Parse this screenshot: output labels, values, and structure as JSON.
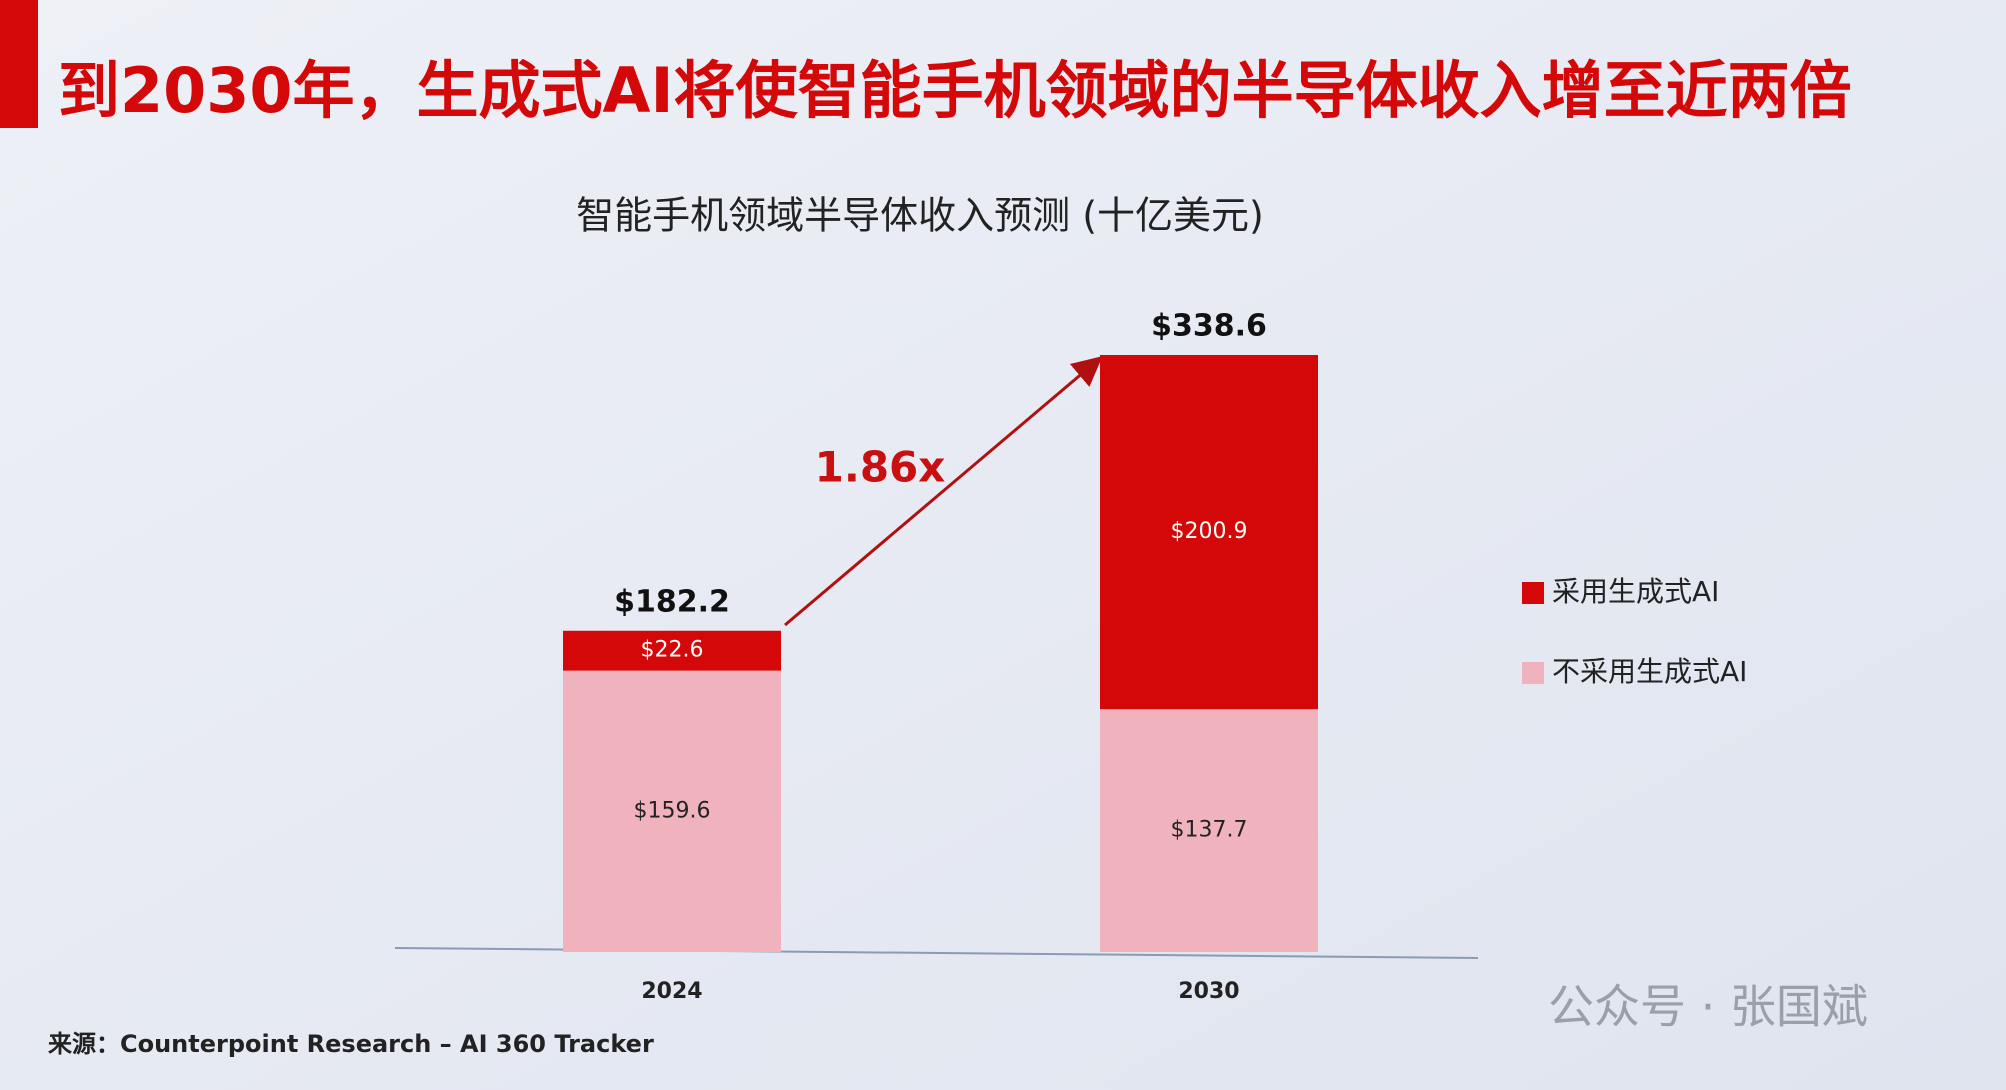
{
  "chart_data": {
    "type": "stacked-bar",
    "title": "到2030年，生成式AI将使智能手机领域的半导体收入增至近两倍",
    "subtitle": "智能手机领域半导体收入预测 (十亿美元)",
    "categories": [
      "2024",
      "2030"
    ],
    "series": [
      {
        "name": "不采用生成式AI",
        "color": "#f0b3bd",
        "values": [
          159.6,
          137.7
        ],
        "value_labels": [
          "$159.6",
          "$137.7"
        ]
      },
      {
        "name": "采用生成式AI",
        "color": "#d40808",
        "values": [
          22.6,
          200.9
        ],
        "value_labels": [
          "$22.6",
          "$200.9"
        ]
      }
    ],
    "totals": [
      182.2,
      338.6
    ],
    "total_labels": [
      "$182.2",
      "$338.6"
    ],
    "annotation": "1.86x",
    "source": "来源：Counterpoint Research – AI 360 Tracker",
    "watermark": "公众号 · 张国斌",
    "legend": "right"
  }
}
